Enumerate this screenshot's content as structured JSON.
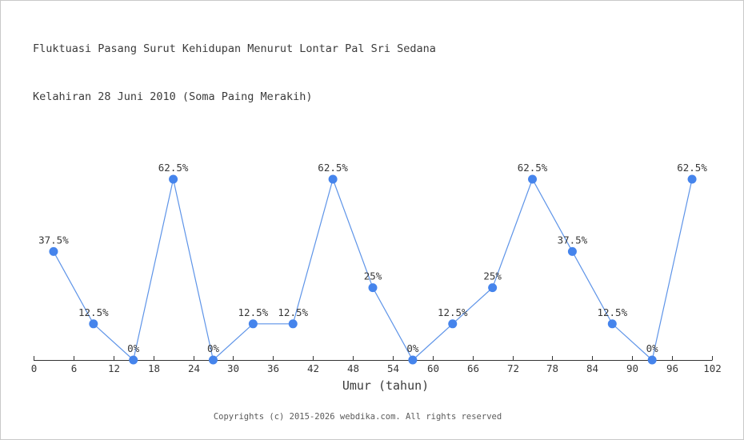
{
  "title": {
    "line1": "Fluktuasi Pasang Surut Kehidupan Menurut Lontar Pal Sri Sedana",
    "line2": "Kelahiran 28 Juni 2010 (Soma Paing Merakih)"
  },
  "footer": {
    "copyright": "Copyrights (c) 2015-2026 webdika.com. All rights reserved"
  },
  "chart_data": {
    "type": "line",
    "title": "Fluktuasi Pasang Surut Kehidupan Menurut Lontar Pal Sri Sedana Kelahiran 28 Juni 2010 (Soma Paing Merakih)",
    "xlabel": "Umur (tahun)",
    "ylabel": "",
    "x": [
      3,
      9,
      15,
      21,
      27,
      33,
      39,
      45,
      51,
      57,
      63,
      69,
      75,
      81,
      87,
      93,
      99
    ],
    "values": [
      37.5,
      12.5,
      0,
      62.5,
      0,
      12.5,
      12.5,
      62.5,
      25,
      0,
      12.5,
      25,
      62.5,
      37.5,
      12.5,
      0,
      62.5
    ],
    "point_labels": [
      "37.5%",
      "12.5%",
      "0%",
      "62.5%",
      "0%",
      "12.5%",
      "12.5%",
      "62.5%",
      "25%",
      "0%",
      "12.5%",
      "25%",
      "62.5%",
      "37.5%",
      "12.5%",
      "0%",
      "62.5%"
    ],
    "x_ticks": [
      0,
      6,
      12,
      18,
      24,
      30,
      36,
      42,
      48,
      54,
      60,
      66,
      72,
      78,
      84,
      90,
      96,
      102
    ],
    "xlim": [
      0,
      102
    ],
    "ylim": [
      0,
      70
    ],
    "grid": false,
    "legend": "none",
    "colors": {
      "marker": "#4584ec",
      "line": "#5e94e8",
      "axis": "#333333",
      "label_text": "#383838"
    }
  }
}
